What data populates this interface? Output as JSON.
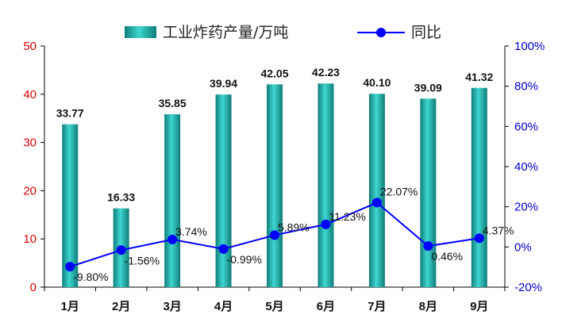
{
  "chart_data": {
    "type": "bar",
    "title": "",
    "xlabel": "",
    "ylabel": "",
    "categories": [
      "1月",
      "2月",
      "3月",
      "4月",
      "5月",
      "6月",
      "7月",
      "8月",
      "9月"
    ],
    "series": [
      {
        "name": "工业炸药产量/万吨",
        "type": "bar",
        "axis": "left",
        "values": [
          33.77,
          16.33,
          35.85,
          39.94,
          42.05,
          42.23,
          40.1,
          39.09,
          41.32
        ],
        "labels": [
          "33.77",
          "16.33",
          "35.85",
          "39.94",
          "42.05",
          "42.23",
          "40.10",
          "39.09",
          "41.32"
        ],
        "color": "#1fa5a0"
      },
      {
        "name": "同比",
        "type": "line",
        "axis": "right",
        "values": [
          -9.8,
          -1.56,
          3.74,
          -0.99,
          5.89,
          11.23,
          22.07,
          0.46,
          4.37
        ],
        "labels": [
          "-9.80%",
          "-1.56%",
          "3.74%",
          "-0.99%",
          "5.89%",
          "11.23%",
          "22.07%",
          "0.46%",
          "4.37%"
        ],
        "color": "#0000ff"
      }
    ],
    "y_left": {
      "min": 0,
      "max": 50,
      "ticks": [
        "0",
        "10",
        "20",
        "30",
        "40",
        "50"
      ],
      "color": "#e00000"
    },
    "y_right": {
      "min": -20,
      "max": 100,
      "ticks": [
        "-20%",
        "0%",
        "20%",
        "40%",
        "60%",
        "80%",
        "100%"
      ],
      "color": "#0000cc"
    },
    "legend": "top",
    "grid": false
  }
}
